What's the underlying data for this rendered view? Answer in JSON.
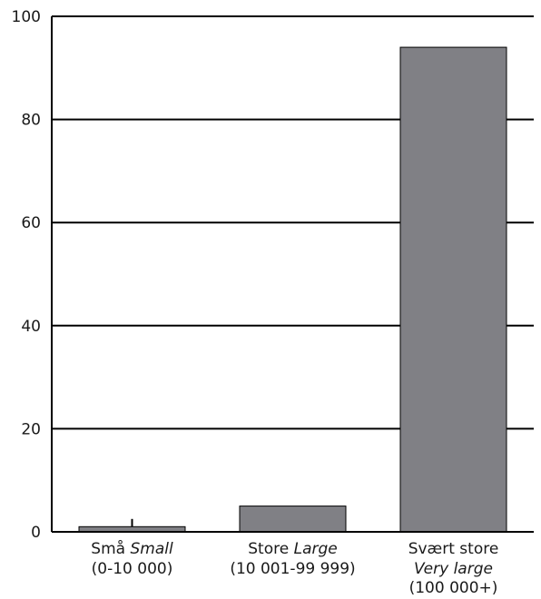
{
  "chart_data": {
    "type": "bar",
    "title": "",
    "xlabel": "",
    "ylabel": "",
    "ylim": [
      0,
      100
    ],
    "yticks": [
      0,
      20,
      40,
      60,
      80,
      100
    ],
    "grid": true,
    "bar_color": "#808085",
    "categories": [
      {
        "no": "Små",
        "en": "Small",
        "range": "(0-10 000)"
      },
      {
        "no": "Store",
        "en": "Large",
        "range": "(10 001-99 999)"
      },
      {
        "no": "Svært store",
        "en": "Very large",
        "range": "(100 000+)"
      }
    ],
    "values": [
      1,
      5,
      94
    ],
    "error_bars": [
      {
        "category": 0,
        "low": 1,
        "high": 2.5
      }
    ]
  }
}
